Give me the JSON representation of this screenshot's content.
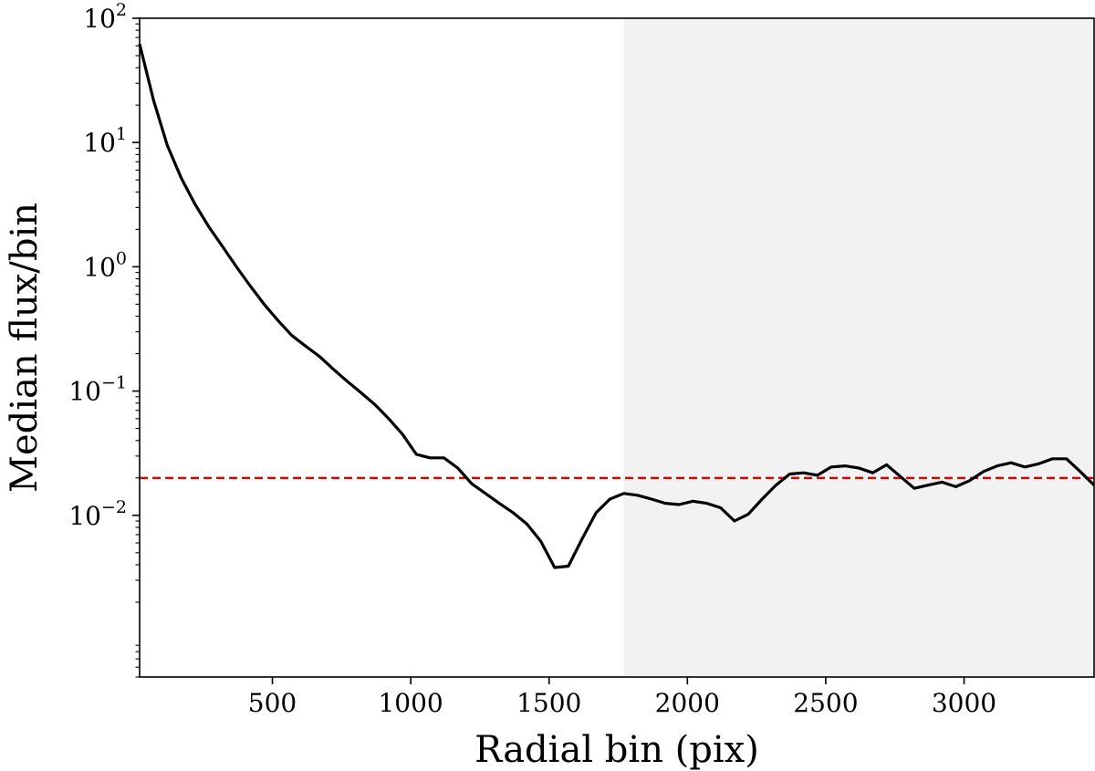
{
  "chart_data": {
    "type": "line",
    "title": "",
    "xlabel": "Radial bin (pix)",
    "ylabel": "Median flux/bin",
    "xlim": [
      20,
      3470
    ],
    "ylim": [
      0.0005,
      100
    ],
    "yscale": "log",
    "grid": false,
    "legend": "none",
    "x_ticks": [
      {
        "value": 500,
        "label": "500"
      },
      {
        "value": 1000,
        "label": "1000"
      },
      {
        "value": 1500,
        "label": "1500"
      },
      {
        "value": 2000,
        "label": "2000"
      },
      {
        "value": 2500,
        "label": "2500"
      },
      {
        "value": 3000,
        "label": "3000"
      }
    ],
    "y_ticks": [
      {
        "value": 0.01,
        "base": "10",
        "exp": "−2"
      },
      {
        "value": 0.1,
        "base": "10",
        "exp": "−1"
      },
      {
        "value": 1,
        "base": "10",
        "exp": "0"
      },
      {
        "value": 10,
        "base": "10",
        "exp": "1"
      },
      {
        "value": 100,
        "base": "10",
        "exp": "2"
      }
    ],
    "shaded_region": {
      "x0": 1770,
      "x1": 3470,
      "color": "#f2f2f2"
    },
    "threshold": {
      "y": 0.02,
      "color": "#e00000",
      "style": "dashed"
    },
    "series": [
      {
        "color": "#000000",
        "x": [
          20,
          70,
          120,
          170,
          220,
          270,
          320,
          370,
          420,
          470,
          520,
          570,
          620,
          670,
          720,
          770,
          820,
          870,
          920,
          970,
          1020,
          1070,
          1120,
          1170,
          1220,
          1270,
          1320,
          1370,
          1420,
          1470,
          1520,
          1570,
          1620,
          1670,
          1720,
          1770,
          1820,
          1870,
          1920,
          1970,
          2020,
          2070,
          2120,
          2170,
          2220,
          2270,
          2320,
          2370,
          2420,
          2470,
          2520,
          2570,
          2620,
          2670,
          2720,
          2770,
          2820,
          2870,
          2920,
          2970,
          3020,
          3070,
          3120,
          3170,
          3220,
          3270,
          3320,
          3370,
          3420,
          3470
        ],
        "y": [
          62,
          22,
          9.5,
          5.2,
          3.2,
          2.1,
          1.45,
          1.0,
          0.7,
          0.5,
          0.37,
          0.28,
          0.23,
          0.19,
          0.15,
          0.12,
          0.097,
          0.078,
          0.06,
          0.045,
          0.031,
          0.029,
          0.029,
          0.024,
          0.018,
          0.015,
          0.0125,
          0.0105,
          0.0085,
          0.0062,
          0.0038,
          0.0039,
          0.0065,
          0.0105,
          0.0135,
          0.015,
          0.0145,
          0.0135,
          0.0125,
          0.0122,
          0.013,
          0.0125,
          0.0115,
          0.009,
          0.0102,
          0.0135,
          0.0175,
          0.0215,
          0.022,
          0.021,
          0.0245,
          0.025,
          0.024,
          0.022,
          0.0255,
          0.0205,
          0.0165,
          0.0175,
          0.0185,
          0.017,
          0.019,
          0.0225,
          0.025,
          0.0265,
          0.0245,
          0.026,
          0.0285,
          0.0285,
          0.0225,
          0.0175
        ]
      }
    ]
  }
}
